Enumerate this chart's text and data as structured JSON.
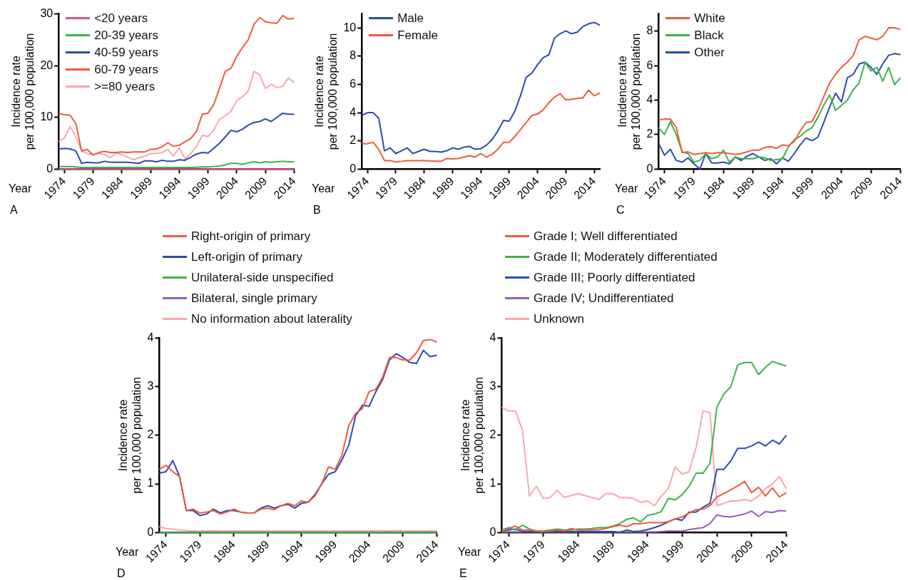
{
  "chart_data": [
    {
      "type": "line",
      "xlabel": "Year",
      "ylabel": "Incidence rate\nper 100,000 population",
      "annotations": [
        "A"
      ],
      "legend": "top left",
      "grid": false,
      "marker": "none",
      "line_style": "solid",
      "xlim": [
        1973,
        2014
      ],
      "xticks": [
        1974,
        1979,
        1984,
        1989,
        1994,
        1999,
        2004,
        2009,
        2014
      ],
      "ylim": [
        0,
        30
      ],
      "yticks": [
        0,
        10,
        20,
        30
      ],
      "x": [
        1973,
        1974,
        1975,
        1976,
        1977,
        1978,
        1979,
        1980,
        1981,
        1982,
        1983,
        1984,
        1985,
        1986,
        1987,
        1988,
        1989,
        1990,
        1991,
        1992,
        1993,
        1994,
        1995,
        1996,
        1997,
        1998,
        1999,
        2000,
        2001,
        2002,
        2003,
        2004,
        2005,
        2006,
        2007,
        2008,
        2009,
        2010,
        2011,
        2012,
        2013,
        2014
      ],
      "series": [
        {
          "name": "<20 years",
          "color": "#e0508a",
          "values": [
            0,
            0,
            0,
            0,
            0,
            0,
            0,
            0,
            0,
            0,
            0,
            0,
            0,
            0,
            0,
            0,
            0,
            0,
            0,
            0,
            0,
            0,
            0,
            0,
            0,
            0,
            0,
            0,
            0,
            0,
            0,
            0,
            0,
            0,
            0,
            0,
            0,
            0,
            0,
            0,
            0,
            0
          ]
        },
        {
          "name": "20-39 years",
          "color": "#3cb44b",
          "values": [
            0.5,
            0.5,
            0.5,
            0.4,
            0.3,
            0.3,
            0.3,
            0.3,
            0.3,
            0.3,
            0.3,
            0.3,
            0.3,
            0.3,
            0.3,
            0.3,
            0.3,
            0.3,
            0.3,
            0.3,
            0.3,
            0.3,
            0.3,
            0.3,
            0.35,
            0.4,
            0.4,
            0.5,
            0.6,
            0.8,
            1.1,
            1.1,
            0.9,
            1.2,
            1.4,
            1.2,
            1.4,
            1.3,
            1.4,
            1.5,
            1.4,
            1.4
          ]
        },
        {
          "name": "40-59 years",
          "color": "#2a4cb0",
          "values": [
            3.9,
            4.0,
            3.9,
            3.5,
            1.1,
            1.3,
            1.2,
            1.2,
            1.5,
            1.3,
            1.3,
            1.3,
            1.3,
            1.2,
            1.1,
            1.6,
            1.6,
            1.4,
            1.7,
            1.5,
            1.5,
            1.8,
            1.7,
            2.3,
            2.9,
            3.2,
            3.1,
            4.0,
            5.0,
            6.2,
            7.5,
            7.2,
            7.7,
            8.5,
            9.0,
            9.2,
            9.7,
            9.2,
            10.0,
            10.8,
            10.6,
            10.6
          ]
        },
        {
          "name": "60-79 years",
          "color": "#f05a3c",
          "values": [
            10.8,
            10.5,
            10.4,
            8.8,
            3.5,
            3.8,
            2.7,
            3.2,
            3.4,
            3.2,
            3.2,
            3.3,
            3.2,
            3.3,
            3.3,
            3.3,
            3.8,
            3.9,
            4.3,
            5.1,
            4.4,
            4.6,
            5.3,
            5.9,
            7.3,
            10.6,
            10.8,
            12.5,
            15.6,
            18.9,
            19.5,
            21.8,
            23.5,
            25.0,
            28.0,
            29.3,
            28.5,
            28.3,
            28.2,
            29.7,
            29.0,
            29.2
          ]
        },
        {
          "name": ">=80 years",
          "color": "#f7a8aa",
          "values": [
            5.3,
            6.0,
            8.2,
            6.3,
            3.5,
            3.0,
            2.8,
            3.0,
            2.8,
            2.2,
            3.1,
            2.8,
            2.3,
            1.8,
            2.2,
            2.5,
            3.0,
            3.0,
            3.2,
            3.8,
            2.5,
            4.1,
            2.0,
            3.0,
            4.4,
            6.5,
            6.3,
            7.5,
            9.6,
            10.3,
            11.2,
            13.2,
            14.0,
            15.1,
            18.9,
            18.2,
            15.6,
            16.4,
            15.8,
            16.0,
            17.6,
            16.7
          ]
        }
      ]
    },
    {
      "type": "line",
      "xlabel": "Year",
      "ylabel": "Incidence rate\nper 100,000 population",
      "annotations": [
        "B"
      ],
      "legend": "top left",
      "grid": false,
      "marker": "none",
      "line_style": "solid",
      "xlim": [
        1973,
        2015
      ],
      "xticks": [
        1974,
        1979,
        1984,
        1989,
        1994,
        1999,
        2004,
        2009,
        2014
      ],
      "ylim": [
        0,
        11
      ],
      "yticks": [
        0,
        2,
        4,
        6,
        8,
        10
      ],
      "x": [
        1973,
        1974,
        1975,
        1976,
        1977,
        1978,
        1979,
        1980,
        1981,
        1982,
        1983,
        1984,
        1985,
        1986,
        1987,
        1988,
        1989,
        1990,
        1991,
        1992,
        1993,
        1994,
        1995,
        1996,
        1997,
        1998,
        1999,
        2000,
        2001,
        2002,
        2003,
        2004,
        2005,
        2006,
        2007,
        2008,
        2009,
        2010,
        2011,
        2012,
        2013,
        2014,
        2015
      ],
      "series": [
        {
          "name": "Male",
          "color": "#2a4cb0",
          "values": [
            3.8,
            4.0,
            4.0,
            3.6,
            1.3,
            1.5,
            1.1,
            1.3,
            1.5,
            1.1,
            1.25,
            1.4,
            1.25,
            1.25,
            1.2,
            1.3,
            1.5,
            1.4,
            1.55,
            1.6,
            1.4,
            1.45,
            1.7,
            2.1,
            2.7,
            3.45,
            3.4,
            4.1,
            5.2,
            6.5,
            6.8,
            7.4,
            7.9,
            8.1,
            9.3,
            9.6,
            9.8,
            9.6,
            9.7,
            10.1,
            10.3,
            10.4,
            10.2
          ]
        },
        {
          "name": "Female",
          "color": "#f05a3c",
          "values": [
            1.8,
            1.8,
            1.9,
            1.4,
            0.6,
            0.6,
            0.5,
            0.55,
            0.6,
            0.6,
            0.6,
            0.6,
            0.58,
            0.55,
            0.55,
            0.75,
            0.72,
            0.75,
            0.85,
            0.95,
            0.85,
            1.1,
            0.85,
            1.05,
            1.4,
            1.9,
            1.9,
            2.3,
            2.8,
            3.3,
            3.8,
            3.9,
            4.2,
            4.7,
            5.1,
            5.35,
            4.9,
            4.95,
            5.0,
            5.05,
            5.6,
            5.2,
            5.4
          ]
        }
      ]
    },
    {
      "type": "line",
      "xlabel": "Year",
      "ylabel": "Incidence rate\nper 100,000 population",
      "annotations": [
        "C"
      ],
      "legend": "top left",
      "grid": false,
      "marker": "none",
      "line_style": "solid",
      "xlim": [
        1973,
        2014
      ],
      "xticks": [
        1974,
        1979,
        1984,
        1989,
        1994,
        1999,
        2004,
        2009,
        2014
      ],
      "ylim": [
        0,
        9
      ],
      "yticks": [
        0,
        2,
        4,
        6,
        8
      ],
      "x": [
        1973,
        1974,
        1975,
        1976,
        1977,
        1978,
        1979,
        1980,
        1981,
        1982,
        1983,
        1984,
        1985,
        1986,
        1987,
        1988,
        1989,
        1990,
        1991,
        1992,
        1993,
        1994,
        1995,
        1996,
        1997,
        1998,
        1999,
        2000,
        2001,
        2002,
        2003,
        2004,
        2005,
        2006,
        2007,
        2008,
        2009,
        2010,
        2011,
        2012,
        2013,
        2014
      ],
      "series": [
        {
          "name": "White",
          "color": "#f05a3c",
          "values": [
            2.85,
            2.9,
            2.9,
            2.4,
            0.95,
            1.0,
            0.85,
            0.9,
            0.95,
            0.9,
            0.95,
            0.95,
            0.9,
            0.85,
            0.9,
            1.0,
            1.1,
            1.1,
            1.25,
            1.3,
            1.2,
            1.4,
            1.35,
            1.6,
            2.2,
            2.7,
            2.75,
            3.4,
            4.2,
            5.0,
            5.5,
            5.9,
            6.2,
            6.6,
            7.5,
            7.7,
            7.6,
            7.5,
            7.7,
            8.2,
            8.2,
            8.1
          ]
        },
        {
          "name": "Black",
          "color": "#3cb44b",
          "values": [
            2.4,
            2.0,
            2.75,
            2.0,
            1.0,
            0.9,
            0.4,
            0.5,
            0.9,
            0.6,
            0.7,
            1.1,
            0.4,
            0.7,
            0.6,
            0.6,
            0.6,
            0.7,
            0.65,
            0.5,
            0.55,
            0.6,
            1.3,
            1.7,
            1.9,
            2.2,
            2.4,
            3.0,
            3.7,
            4.3,
            3.4,
            3.7,
            4.0,
            4.6,
            5.0,
            6.2,
            5.7,
            5.9,
            5.1,
            5.9,
            4.9,
            5.3
          ]
        },
        {
          "name": "Other",
          "color": "#2a4cb0",
          "values": [
            1.5,
            0.8,
            1.15,
            0.5,
            0.4,
            0.65,
            0.3,
            0.0,
            0.9,
            0.35,
            0.35,
            0.4,
            0.3,
            0.7,
            0.5,
            0.75,
            0.9,
            0.7,
            0.5,
            0.6,
            0.3,
            0.65,
            0.45,
            0.9,
            1.4,
            1.8,
            1.65,
            1.85,
            2.7,
            3.6,
            4.4,
            3.9,
            5.3,
            5.5,
            6.1,
            6.2,
            5.9,
            5.5,
            6.1,
            6.6,
            6.7,
            6.65
          ]
        }
      ]
    },
    {
      "type": "line",
      "xlabel": "Year",
      "ylabel": "Incidence rate\nper 100,000 population",
      "annotations": [
        "D"
      ],
      "legend": "top",
      "grid": false,
      "marker": "none",
      "line_style": "solid",
      "xlim": [
        1973,
        2014
      ],
      "xticks": [
        1974,
        1979,
        1984,
        1989,
        1994,
        1999,
        2004,
        2009,
        2014
      ],
      "ylim": [
        0,
        4
      ],
      "yticks": [
        0,
        1,
        2,
        3,
        4
      ],
      "x": [
        1973,
        1974,
        1975,
        1976,
        1977,
        1978,
        1979,
        1980,
        1981,
        1982,
        1983,
        1984,
        1985,
        1986,
        1987,
        1988,
        1989,
        1990,
        1991,
        1992,
        1993,
        1994,
        1995,
        1996,
        1997,
        1998,
        1999,
        2000,
        2001,
        2002,
        2003,
        2004,
        2005,
        2006,
        2007,
        2008,
        2009,
        2010,
        2011,
        2012,
        2013,
        2014
      ],
      "series": [
        {
          "name": "Right-origin of primary",
          "color": "#f05a3c",
          "values": [
            1.3,
            1.38,
            1.25,
            1.15,
            0.45,
            0.48,
            0.4,
            0.42,
            0.45,
            0.38,
            0.42,
            0.48,
            0.42,
            0.4,
            0.4,
            0.48,
            0.5,
            0.47,
            0.55,
            0.6,
            0.55,
            0.65,
            0.62,
            0.75,
            1.0,
            1.35,
            1.3,
            1.6,
            2.2,
            2.45,
            2.55,
            2.9,
            2.95,
            3.2,
            3.6,
            3.6,
            3.55,
            3.55,
            3.7,
            3.95,
            3.97,
            3.92
          ]
        },
        {
          "name": "Left-origin of primary",
          "color": "#2a4cb0",
          "values": [
            1.22,
            1.25,
            1.48,
            1.15,
            0.45,
            0.45,
            0.35,
            0.38,
            0.48,
            0.4,
            0.45,
            0.45,
            0.42,
            0.4,
            0.4,
            0.5,
            0.55,
            0.5,
            0.55,
            0.58,
            0.5,
            0.6,
            0.62,
            0.78,
            1.0,
            1.2,
            1.25,
            1.5,
            1.8,
            2.4,
            2.62,
            2.6,
            2.9,
            3.15,
            3.55,
            3.68,
            3.6,
            3.5,
            3.48,
            3.75,
            3.62,
            3.65
          ]
        },
        {
          "name": "Unilateral-side unspecified",
          "color": "#3cb44b",
          "values": [
            0,
            0,
            0,
            0,
            0,
            0,
            0,
            0,
            0,
            0,
            0,
            0,
            0,
            0,
            0,
            0,
            0,
            0,
            0,
            0,
            0,
            0,
            0,
            0,
            0,
            0,
            0,
            0,
            0,
            0,
            0,
            0,
            0,
            0,
            0,
            0,
            0,
            0,
            0,
            0,
            0,
            0
          ]
        },
        {
          "name": "Bilateral, single primary",
          "color": "#9060c0",
          "values": [
            null,
            null,
            null,
            null,
            null,
            null,
            null,
            null,
            null,
            null,
            null,
            null,
            null,
            null,
            null,
            null,
            null,
            null,
            null,
            null,
            null,
            null,
            null,
            null,
            null,
            null,
            null,
            null,
            null,
            null,
            null,
            null,
            null,
            null,
            null,
            null,
            null,
            null,
            null,
            null,
            null,
            null
          ]
        },
        {
          "name": "No information about laterality",
          "color": "#f7a8aa",
          "values": [
            0.12,
            0.08,
            0.07,
            0.05,
            0.04,
            0.03,
            0.03,
            0.03,
            0.04,
            0.03,
            0.03,
            0.03,
            0.03,
            0.03,
            0.03,
            0.03,
            0.03,
            0.03,
            0.03,
            0.03,
            0.03,
            0.03,
            0.03,
            0.03,
            0.03,
            0.03,
            0.03,
            0.03,
            0.03,
            0.03,
            0.03,
            0.03,
            0.04,
            0.04,
            0.03,
            0.04,
            0.03,
            0.03,
            0.03,
            0.03,
            0.04,
            0.03
          ]
        }
      ]
    },
    {
      "type": "line",
      "xlabel": "Year",
      "ylabel": "Incidence rate\nper 100,000 population",
      "annotations": [
        "E"
      ],
      "legend": "top",
      "grid": false,
      "marker": "none",
      "line_style": "solid",
      "xlim": [
        1973,
        2014
      ],
      "xticks": [
        1974,
        1979,
        1984,
        1989,
        1994,
        1999,
        2004,
        2009,
        2014
      ],
      "ylim": [
        0,
        4
      ],
      "yticks": [
        0,
        1,
        2,
        3,
        4
      ],
      "x": [
        1973,
        1974,
        1975,
        1976,
        1977,
        1978,
        1979,
        1980,
        1981,
        1982,
        1983,
        1984,
        1985,
        1986,
        1987,
        1988,
        1989,
        1990,
        1991,
        1992,
        1993,
        1994,
        1995,
        1996,
        1997,
        1998,
        1999,
        2000,
        2001,
        2002,
        2003,
        2004,
        2005,
        2006,
        2007,
        2008,
        2009,
        2010,
        2011,
        2012,
        2013,
        2014
      ],
      "series": [
        {
          "name": "Grade I; Well differentiated",
          "color": "#f05a3c",
          "values": [
            0.02,
            0.08,
            0.13,
            0.05,
            0.05,
            0.03,
            0.02,
            0.03,
            0.05,
            0.03,
            0.08,
            0.05,
            0.05,
            0.05,
            0.06,
            0.08,
            0.12,
            0.15,
            0.12,
            0.18,
            0.18,
            0.2,
            0.2,
            0.2,
            0.22,
            0.28,
            0.32,
            0.4,
            0.47,
            0.48,
            0.55,
            0.73,
            0.8,
            0.88,
            0.96,
            1.05,
            0.82,
            0.93,
            0.75,
            0.92,
            0.73,
            0.82
          ]
        },
        {
          "name": "Grade II; Moderately differentiated",
          "color": "#3cb44b",
          "values": [
            0.05,
            0.1,
            0.05,
            0.15,
            0.07,
            0.03,
            0.03,
            0.05,
            0.07,
            0.05,
            0.05,
            0.07,
            0.07,
            0.08,
            0.1,
            0.1,
            0.13,
            0.18,
            0.27,
            0.3,
            0.22,
            0.35,
            0.38,
            0.43,
            0.7,
            0.67,
            0.78,
            0.95,
            1.22,
            1.22,
            1.42,
            2.58,
            2.85,
            3.0,
            3.45,
            3.5,
            3.5,
            3.25,
            3.4,
            3.52,
            3.47,
            3.43
          ]
        },
        {
          "name": "Grade III; Poorly differentiated",
          "color": "#2a4cb0",
          "values": [
            0.02,
            0.05,
            0.07,
            0.02,
            0.02,
            0.02,
            0.02,
            0.02,
            0.02,
            0.02,
            0.02,
            0.02,
            0.02,
            0.02,
            0.02,
            0.02,
            0.02,
            0.0,
            0.05,
            0.02,
            0.03,
            0.06,
            0.1,
            0.15,
            0.22,
            0.28,
            0.25,
            0.42,
            0.42,
            0.52,
            0.6,
            1.3,
            1.3,
            1.47,
            1.73,
            1.73,
            1.78,
            1.86,
            1.78,
            1.9,
            1.82,
            2.0
          ]
        },
        {
          "name": "Grade IV; Undifferentiated",
          "color": "#9060c0",
          "values": [
            0.01,
            0.01,
            0.01,
            0.01,
            0.01,
            0.01,
            0.01,
            0.01,
            0.01,
            0.01,
            0.01,
            0.01,
            0.01,
            0.01,
            0.01,
            0.01,
            0.01,
            0.01,
            0.01,
            0.01,
            0.01,
            0.01,
            0.01,
            0.02,
            0.03,
            0.03,
            0.03,
            0.06,
            0.08,
            0.1,
            0.18,
            0.36,
            0.33,
            0.32,
            0.35,
            0.38,
            0.44,
            0.33,
            0.43,
            0.41,
            0.45,
            0.44
          ]
        },
        {
          "name": "Unknown",
          "color": "#f7a8aa",
          "values": [
            2.58,
            2.5,
            2.5,
            2.1,
            0.75,
            0.95,
            0.7,
            0.72,
            0.87,
            0.72,
            0.76,
            0.8,
            0.76,
            0.72,
            0.68,
            0.8,
            0.8,
            0.72,
            0.72,
            0.7,
            0.62,
            0.65,
            0.55,
            0.75,
            0.9,
            1.35,
            1.2,
            1.25,
            1.75,
            2.5,
            2.47,
            0.55,
            0.6,
            0.65,
            0.65,
            0.68,
            0.65,
            0.75,
            0.9,
            1.0,
            1.15,
            0.9
          ]
        }
      ]
    }
  ]
}
